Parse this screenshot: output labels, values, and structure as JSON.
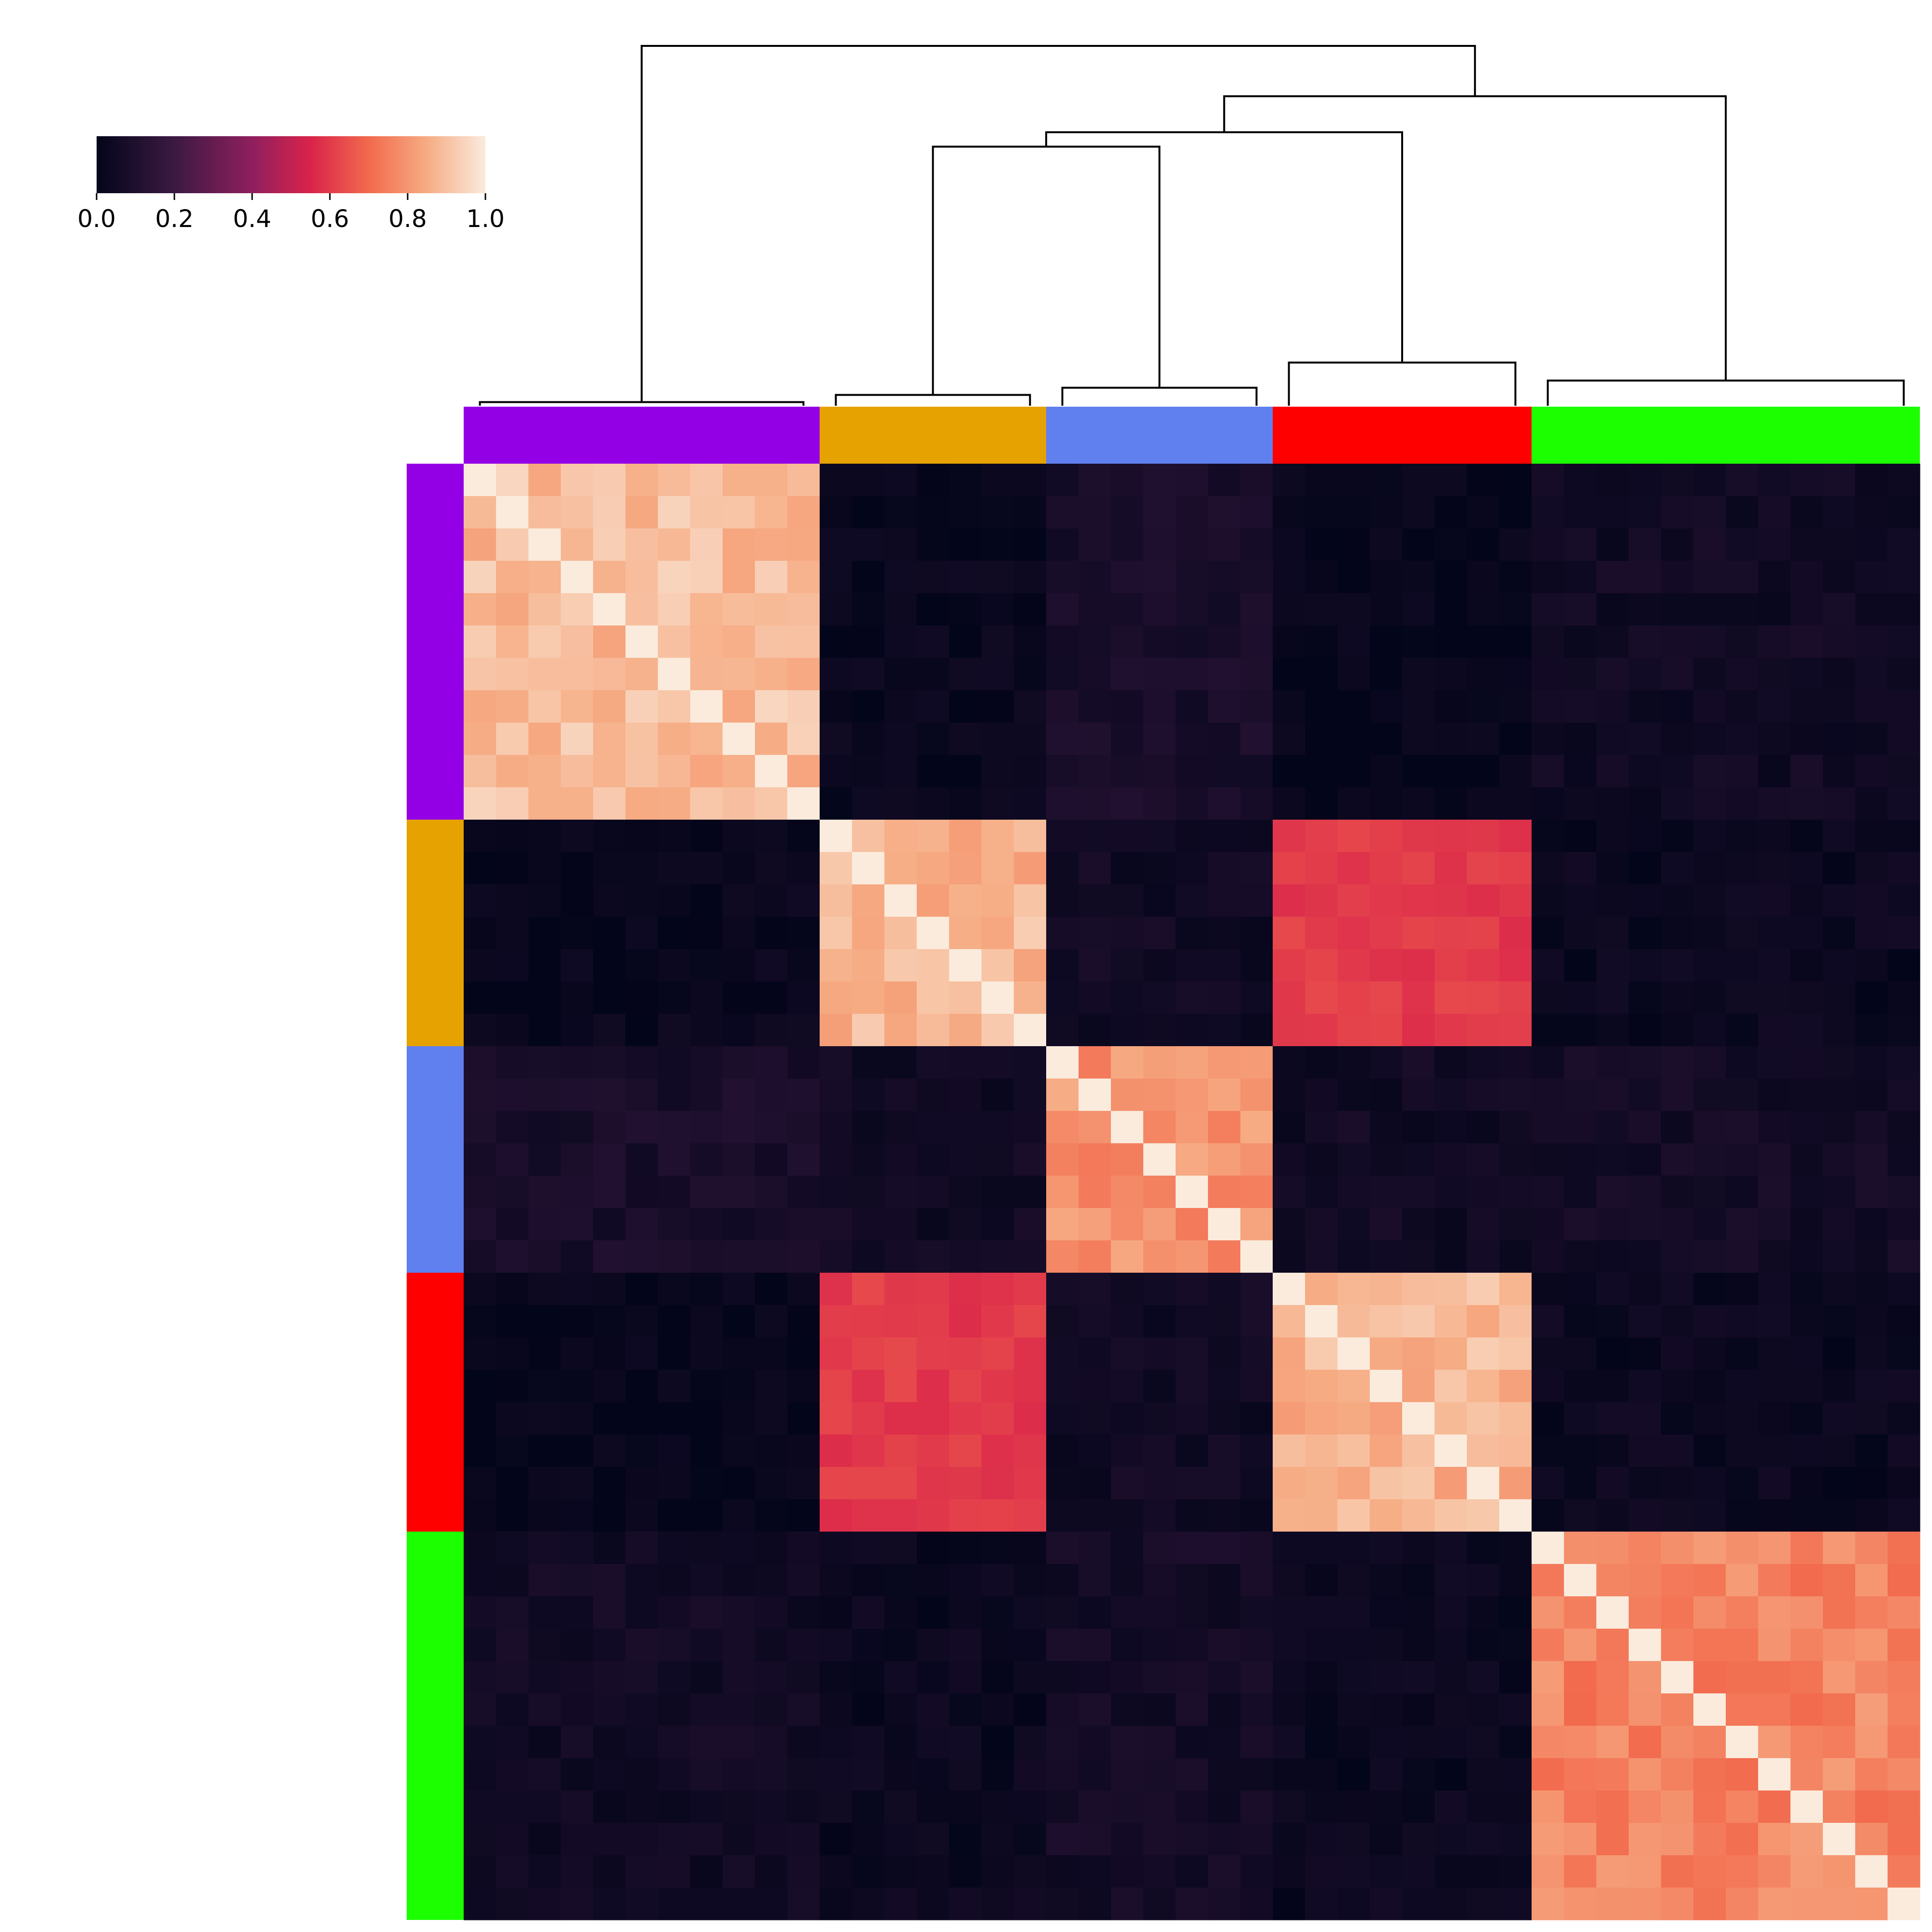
{
  "chart_data": {
    "type": "heatmap",
    "title": "",
    "xlabel": "",
    "ylabel": "",
    "colormap": "rocket",
    "colorbar": {
      "range": [
        0.0,
        1.0
      ],
      "ticks": [
        "0.0",
        "0.2",
        "0.4",
        "0.6",
        "0.8",
        "1.0"
      ],
      "placement": "top-left"
    },
    "clusters": [
      {
        "color": "#9400e6",
        "size": 11
      },
      {
        "color": "#e6a200",
        "size": 7
      },
      {
        "color": "#6080f0",
        "size": 7
      },
      {
        "color": "#ff0000",
        "size": 8
      },
      {
        "color": "#1cff00",
        "size": 12
      }
    ],
    "within_cluster_similarity": [
      0.95,
      0.93,
      0.85,
      0.93,
      0.82
    ],
    "between_cluster_similarity": [
      [
        0.95,
        0.02,
        0.08,
        0.01,
        0.05
      ],
      [
        0.02,
        0.93,
        0.05,
        0.6,
        0.03
      ],
      [
        0.08,
        0.05,
        0.85,
        0.05,
        0.06
      ],
      [
        0.01,
        0.6,
        0.05,
        0.93,
        0.03
      ],
      [
        0.05,
        0.03,
        0.06,
        0.03,
        0.82
      ]
    ],
    "dendrogram": {
      "root_split": [
        [
          "purple"
        ],
        [
          "orange",
          "blue",
          "red",
          "green"
        ]
      ],
      "merge_order": [
        "orange+blue",
        "orange+blue+red",
        "orange+blue+red+green",
        "all"
      ],
      "merge_heights": [
        0.72,
        0.76,
        0.86,
        1.0
      ]
    }
  }
}
